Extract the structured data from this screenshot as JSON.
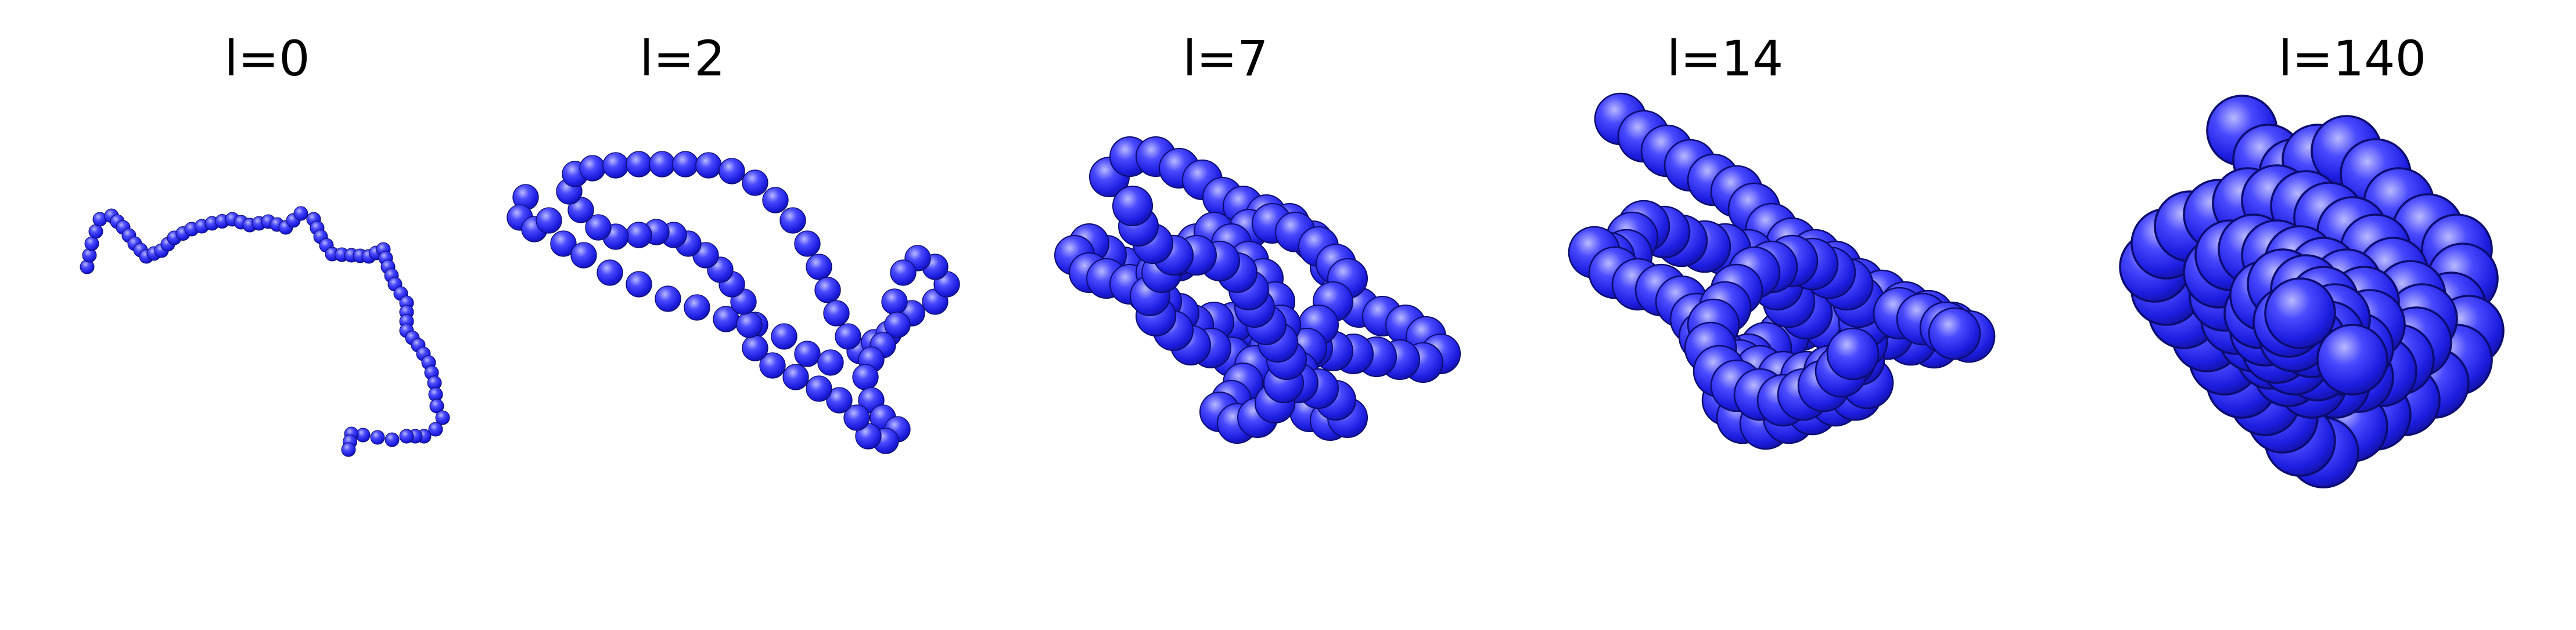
{
  "figure": {
    "colors": {
      "bead_highlight": "#b9b9ff",
      "bead_mid": "#2a2aff",
      "bead_shadow": "#10109a",
      "background": "#ffffff"
    },
    "panels": [
      {
        "title": "l=0"
      },
      {
        "title": "l=2"
      },
      {
        "title": "l=7"
      },
      {
        "title": "l=14"
      },
      {
        "title": "l=140"
      }
    ]
  }
}
